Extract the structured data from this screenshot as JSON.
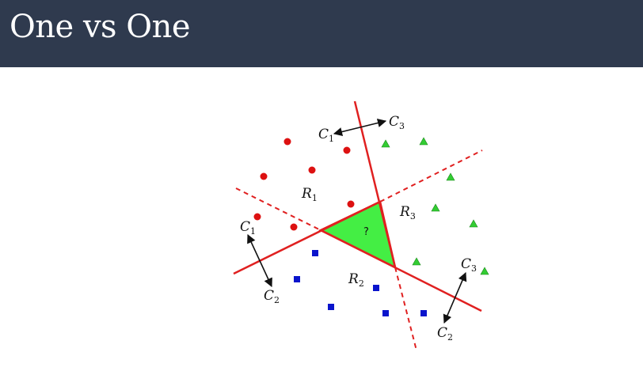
{
  "slide": {
    "title": "One vs One"
  },
  "diagram": {
    "labels": {
      "c1_top": "C",
      "c1_top_sub": "1",
      "c3_top": "C",
      "c3_top_sub": "3",
      "r1": "R",
      "r1_sub": "1",
      "r2": "R",
      "r2_sub": "2",
      "r3": "R",
      "r3_sub": "3",
      "c1_left": "C",
      "c1_left_sub": "1",
      "c2_left": "C",
      "c2_left_sub": "2",
      "c3_right": "C",
      "c3_right_sub": "3",
      "c2_right": "C",
      "c2_right_sub": "2",
      "question": "?"
    },
    "colors": {
      "line": "#e02020",
      "triangle_fill": "#44ee44",
      "circle": "#dd1111",
      "square": "#0a14cc",
      "triangle_marker": "#33cc33"
    }
  }
}
